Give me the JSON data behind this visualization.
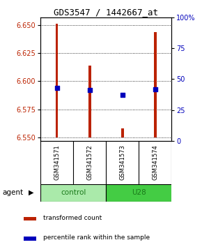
{
  "title": "GDS3547 / 1442667_at",
  "samples": [
    "GSM341571",
    "GSM341572",
    "GSM341573",
    "GSM341574"
  ],
  "bar_bottoms": [
    6.55,
    6.55,
    6.55,
    6.55
  ],
  "bar_tops": [
    6.651,
    6.614,
    6.558,
    6.644
  ],
  "blue_y": [
    6.594,
    6.592,
    6.588,
    6.593
  ],
  "ylim_left": [
    6.547,
    6.657
  ],
  "yticks_left": [
    6.55,
    6.575,
    6.6,
    6.625,
    6.65
  ],
  "yticks_right": [
    0,
    25,
    50,
    75,
    100
  ],
  "bar_color": "#BB2200",
  "blue_color": "#0000BB",
  "bar_width": 0.08,
  "blue_size": 25,
  "bg_color": "#FFFFFF",
  "plot_bg": "#FFFFFF",
  "label_color_left": "#BB2200",
  "label_color_right": "#0000BB",
  "legend_red_label": "transformed count",
  "legend_blue_label": "percentile rank within the sample",
  "xlim": [
    0.5,
    4.5
  ],
  "control_color": "#AAEAAA",
  "u28_color": "#44CC44",
  "sample_bg": "#CCCCCC"
}
